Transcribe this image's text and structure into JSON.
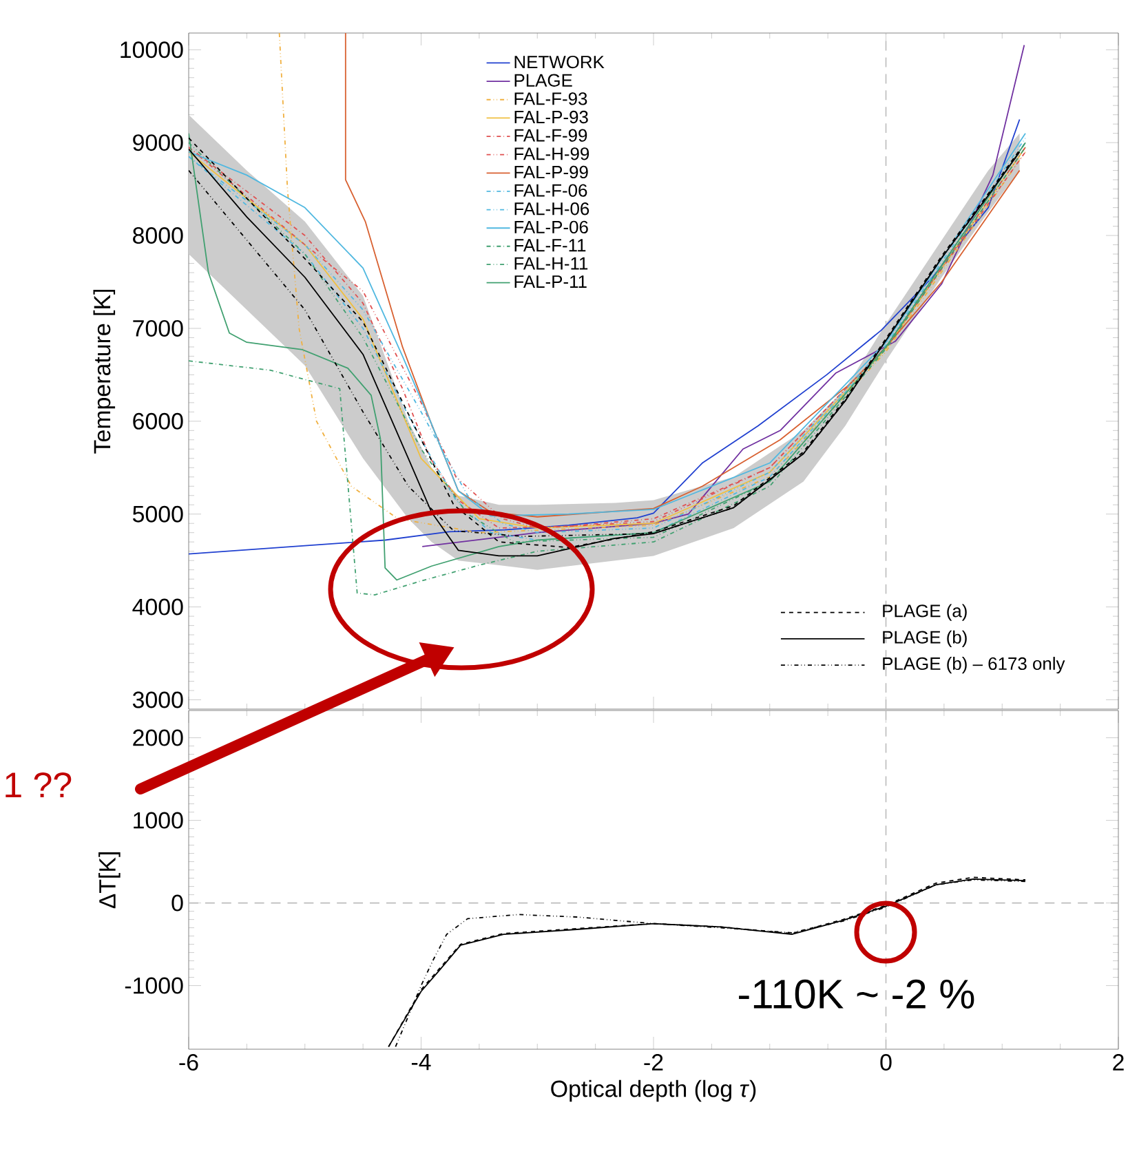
{
  "chart_data": [
    {
      "type": "line",
      "ylabel": "Temperature [K]",
      "xlim": [
        -6,
        2
      ],
      "ylim": [
        2900,
        10180
      ],
      "xticks": [
        -6,
        -4,
        -2,
        0,
        2
      ],
      "yticks": [
        3000,
        4000,
        5000,
        6000,
        7000,
        8000,
        9000,
        10000
      ],
      "tick_labels": "y",
      "legend": "top",
      "grid": false,
      "ref_lines": [
        {
          "axis": "x",
          "value": 0,
          "color": "#bbbbbb",
          "line_style": "dashed"
        }
      ],
      "series": [
        {
          "name": "NETWORK",
          "color": "#2040d0",
          "line_style": "solid",
          "x": [
            -6,
            -5,
            -4.31,
            -3.76,
            -3.28,
            -2.73,
            -2.14,
            -2,
            -1.58,
            -1.1,
            -0.51,
            -0.04,
            0.4,
            0.88,
            1.15
          ],
          "values": [
            4570,
            4660,
            4720,
            4810,
            4830,
            4880,
            4960,
            5010,
            5550,
            5950,
            6500,
            6980,
            7550,
            8300,
            9250
          ]
        },
        {
          "name": "PLAGE",
          "color": "#7030a0",
          "line_style": "solid",
          "x": [
            -3.99,
            -3,
            -2,
            -1.7,
            -1.23,
            -0.91,
            -0.43,
            0.08,
            0.48,
            0.92,
            1.19
          ],
          "values": [
            4650,
            4800,
            4900,
            5000,
            5700,
            5900,
            6520,
            6860,
            7480,
            8650,
            10050
          ]
        },
        {
          "name": "FAL-F-93",
          "color": "#f0b040",
          "line_style": "dashdotdot",
          "x": [
            -5.22,
            -5.15,
            -5.05,
            -4.9,
            -4.6,
            -4.2,
            -3.5,
            -2,
            -1,
            0,
            1.2
          ],
          "values": [
            10180,
            8500,
            7000,
            6000,
            5300,
            4950,
            4800,
            4880,
            5400,
            6750,
            8900
          ]
        },
        {
          "name": "FAL-P-93",
          "color": "#f0c040",
          "line_style": "solid",
          "x": [
            -6,
            -5,
            -4.5,
            -4,
            -3.5,
            -3,
            -2,
            -1,
            0,
            1.2
          ],
          "values": [
            8900,
            7900,
            7100,
            5600,
            4950,
            4850,
            4900,
            5450,
            6780,
            8950
          ]
        },
        {
          "name": "FAL-F-99",
          "color": "#e05050",
          "line_style": "dashdot",
          "x": [
            -6,
            -5,
            -4.5,
            -4.16,
            -3.92,
            -3.68,
            -3.33,
            -2.73,
            -2,
            -1,
            0,
            1.2
          ],
          "values": [
            8950,
            8000,
            7270,
            6350,
            5600,
            5150,
            4850,
            4870,
            4950,
            5500,
            6800,
            8900
          ]
        },
        {
          "name": "FAL-H-99",
          "color": "#e05050",
          "line_style": "dashdotdot",
          "x": [
            -6,
            -5,
            -4.5,
            -4,
            -3.7,
            -3.3,
            -3,
            -2,
            -1,
            0,
            1.2
          ],
          "values": [
            8950,
            7900,
            7400,
            6200,
            5400,
            4950,
            4850,
            4920,
            5500,
            6800,
            8950
          ]
        },
        {
          "name": "FAL-P-99",
          "color": "#d86030",
          "line_style": "solid",
          "x": [
            -4.65,
            -4.65,
            -4.48,
            -4.16,
            -3.92,
            -3.68,
            -3.4,
            -3,
            -2,
            -1.58,
            -0.91,
            -0.31,
            0,
            0.48,
            1.15
          ],
          "values": [
            10180,
            8600,
            8150,
            6800,
            6000,
            5250,
            5020,
            4970,
            5060,
            5300,
            5800,
            6400,
            6800,
            7500,
            8700
          ]
        },
        {
          "name": "FAL-F-06",
          "color": "#50b8e0",
          "line_style": "dashdot",
          "x": [
            -6,
            -5,
            -4.5,
            -4,
            -3.7,
            -3.4,
            -3,
            -2,
            -1,
            0,
            1.2
          ],
          "values": [
            8850,
            7800,
            7000,
            5800,
            5150,
            4800,
            4720,
            4800,
            5400,
            6800,
            9000
          ]
        },
        {
          "name": "FAL-H-06",
          "color": "#50b8e0",
          "line_style": "dashdotdot",
          "x": [
            -6,
            -5,
            -4.5,
            -4,
            -3.6,
            -3.3,
            -3,
            -2,
            -1,
            0,
            1.2
          ],
          "values": [
            8850,
            7900,
            7200,
            6100,
            5200,
            4900,
            4800,
            4850,
            5450,
            6820,
            9050
          ]
        },
        {
          "name": "FAL-P-06",
          "color": "#50b8e0",
          "line_style": "solid",
          "x": [
            -6,
            -5.5,
            -5,
            -4.5,
            -4.16,
            -3.92,
            -3.68,
            -3.4,
            -2.73,
            -2,
            -1,
            0,
            1.2
          ],
          "values": [
            8900,
            8650,
            8300,
            7650,
            6700,
            6000,
            5250,
            4980,
            5000,
            5050,
            5550,
            6850,
            9100
          ]
        },
        {
          "name": "FAL-F-11",
          "color": "#40a070",
          "line_style": "dashdot",
          "x": [
            -6,
            -5.3,
            -4.7,
            -4.55,
            -4.4,
            -4,
            -3.5,
            -3,
            -2,
            -1,
            0,
            1.2
          ],
          "values": [
            6650,
            6550,
            6350,
            4150,
            4130,
            4280,
            4450,
            4600,
            4700,
            5300,
            6780,
            8950
          ]
        },
        {
          "name": "FAL-H-11",
          "color": "#40a070",
          "line_style": "dashdotdot",
          "x": [
            -6,
            -5,
            -4.5,
            -4,
            -3.6,
            -3.2,
            -2,
            -1,
            0,
            1.2
          ],
          "values": [
            9000,
            7800,
            6900,
            5700,
            5000,
            4700,
            4750,
            5350,
            6800,
            9000
          ]
        },
        {
          "name": "FAL-P-11",
          "color": "#40a070",
          "line_style": "solid",
          "x": [
            -6,
            -5.83,
            -5.65,
            -5.5,
            -5.02,
            -4.63,
            -4.43,
            -4.35,
            -4.31,
            -4.21,
            -3.91,
            -3.33,
            -3,
            -2,
            -1,
            0,
            1.2
          ],
          "values": [
            9100,
            7600,
            6950,
            6850,
            6770,
            6570,
            6280,
            5810,
            4420,
            4290,
            4440,
            4650,
            4720,
            4800,
            5350,
            6800,
            9000
          ]
        },
        {
          "name": "PLAGE (a)",
          "color": "#000000",
          "line_style": "dashed",
          "x": [
            -6,
            -5,
            -4.5,
            -4.11,
            -3.72,
            -3.33,
            -2.73,
            -2,
            -1.31,
            -0.71,
            -0.35,
            0,
            0.48,
            0.88,
            1.15
          ],
          "values": [
            9050,
            7750,
            7070,
            6080,
            5100,
            4700,
            4640,
            4810,
            5090,
            5670,
            6240,
            6890,
            7780,
            8450,
            8920
          ]
        },
        {
          "name": "PLAGE (b)",
          "color": "#000000",
          "line_style": "solid",
          "x": [
            -6,
            -5.5,
            -5,
            -4.5,
            -4.11,
            -3.91,
            -3.68,
            -3.33,
            -3,
            -2.33,
            -2,
            -1.31,
            -0.71,
            -0.35,
            0,
            0.48,
            0.88,
            1.15
          ],
          "values": [
            8930,
            8200,
            7550,
            6720,
            5600,
            5020,
            4610,
            4550,
            4550,
            4740,
            4790,
            5070,
            5650,
            6220,
            6870,
            7760,
            8430,
            8900
          ],
          "lower": [
            7800,
            7200,
            6600,
            5600,
            4950,
            4700,
            4500,
            4450,
            4400,
            4500,
            4550,
            4850,
            5350,
            5950,
            6650,
            7550,
            8250,
            8700
          ],
          "upper": [
            9300,
            8700,
            8150,
            7350,
            6000,
            5500,
            5200,
            5100,
            5100,
            5120,
            5150,
            5400,
            5900,
            6350,
            7050,
            7950,
            8700,
            9100
          ]
        },
        {
          "name": "PLAGE (b) – 6173 only",
          "color": "#000000",
          "line_style": "dashdotdot",
          "x": [
            -6,
            -5,
            -4.5,
            -4.11,
            -3.72,
            -3.13,
            -2,
            -1.31,
            -0.71,
            -0.35,
            0,
            0.48,
            0.88,
            1.15
          ],
          "values": [
            8700,
            7200,
            6100,
            5300,
            4820,
            4760,
            4790,
            5070,
            5650,
            6220,
            6870,
            7760,
            8430,
            8900
          ]
        }
      ]
    },
    {
      "type": "line",
      "xlabel": "Optical depth (log *τ*)",
      "ylabel": "ΔT[K]",
      "xlim": [
        -6,
        2
      ],
      "ylim": [
        -1770,
        2330
      ],
      "xticks": [
        -6,
        -4,
        -2,
        0,
        2
      ],
      "yticks": [
        -1000,
        0,
        1000,
        2000
      ],
      "legend": false,
      "grid": false,
      "ref_lines": [
        {
          "axis": "x",
          "value": 0,
          "color": "#bbbbbb",
          "line_style": "dashed"
        },
        {
          "axis": "y",
          "value": 0,
          "color": "#bbbbbb",
          "line_style": "dashed"
        }
      ],
      "annotations": [
        "1 ??",
        "-110K ~ -2 %"
      ],
      "series": [
        {
          "color": "#000000",
          "line_style": "dashed",
          "x": [
            -4.28,
            -4,
            -3.84,
            -3.66,
            -3.29,
            -2.66,
            -2,
            -1.42,
            -0.81,
            -0.37,
            0,
            0.43,
            0.75,
            1.2
          ],
          "values": [
            -1740,
            -1050,
            -790,
            -500,
            -370,
            -310,
            -250,
            -290,
            -370,
            -200,
            -30,
            240,
            310,
            280
          ]
        },
        {
          "color": "#000000",
          "line_style": "solid",
          "x": [
            -4.28,
            -4,
            -3.84,
            -3.66,
            -3.29,
            -2.66,
            -2,
            -1.42,
            -0.81,
            -0.37,
            0,
            0.43,
            0.75,
            1.2
          ],
          "values": [
            -1740,
            -1070,
            -810,
            -510,
            -380,
            -320,
            -250,
            -290,
            -380,
            -210,
            -40,
            220,
            290,
            270
          ]
        },
        {
          "color": "#000000",
          "line_style": "dashdotdot",
          "x": [
            -4.22,
            -4,
            -3.9,
            -3.78,
            -3.6,
            -3.16,
            -2.66,
            -2,
            -1.42,
            -0.81,
            -0.37,
            0,
            0.43,
            0.75,
            1.2
          ],
          "values": [
            -1740,
            -1000,
            -700,
            -380,
            -190,
            -140,
            -170,
            -250,
            -300,
            -360,
            -220,
            -50,
            220,
            280,
            260
          ]
        }
      ]
    }
  ]
}
